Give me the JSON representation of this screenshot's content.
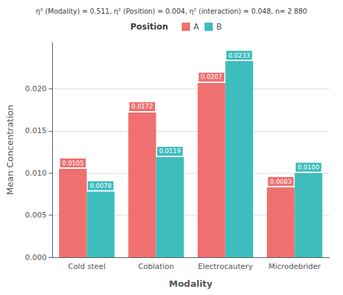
{
  "chart_data": {
    "type": "bar",
    "title": "η² (Modality) = 0.511, η² (Position) = 0.004, η² (interaction) = 0.048, n= 2 880",
    "x_label": "Modality",
    "y_label": "Mean Concentration",
    "categories": [
      "Cold steel",
      "Coblation",
      "Electrocautery",
      "Microdebrider"
    ],
    "legend_title": "Position",
    "series": [
      {
        "name": "A",
        "color": "#F07070",
        "values": [
          0.0105,
          0.0172,
          0.0207,
          0.0083
        ],
        "value_labels": [
          "0.0105",
          "0.0172",
          "0.0207",
          "0.0083"
        ]
      },
      {
        "name": "B",
        "color": "#3DBDBD",
        "values": [
          0.0078,
          0.0119,
          0.0233,
          0.01
        ],
        "value_labels": [
          "0.0078",
          "0.0119",
          "0.0233",
          "0.0100"
        ]
      }
    ],
    "ylim": [
      0,
      0.0255
    ],
    "yticks": [
      {
        "value": 0,
        "label": "0.000"
      },
      {
        "value": 0.005,
        "label": "0.005"
      },
      {
        "value": 0.01,
        "label": "0.010"
      },
      {
        "value": 0.015,
        "label": "0.015"
      },
      {
        "value": 0.02,
        "label": "0.020"
      }
    ],
    "grid": true,
    "legend": "top",
    "data_labels": true
  }
}
